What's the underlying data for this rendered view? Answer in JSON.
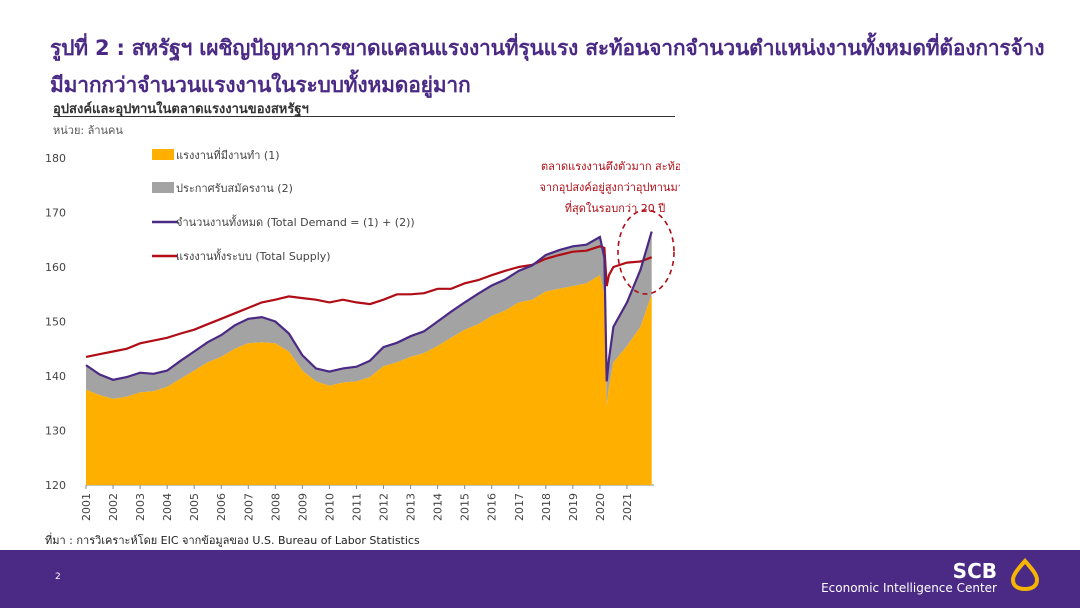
{
  "slide": {
    "title": "รูปที่ 2 : สหรัฐฯ เผชิญปัญหาการขาดแคลนแรงงานที่รุนแรง สะท้อนจากจำนวนตำแหน่งงานทั้งหมดที่ต้องการจ้างมีมากกว่าจำนวนแรงงานในระบบทั้งหมดอยู่มาก",
    "subtitle": "อุปสงค์และอุปทานในตลาดแรงงานของสหรัฐฯ",
    "unit": "หน่วย: ล้านคน",
    "source": "ที่มา : การวิเคราะห์โดย EIC จากข้อมูลของ U.S. Bureau of Labor Statistics",
    "page_number": "2",
    "brand": "SCB",
    "brand_sub": "Economic Intelligence Center"
  },
  "colors": {
    "employed": "#ffaf00",
    "unemployed": "#a3a3a3",
    "demand": "#4b2a85",
    "supply": "#b00d16",
    "annotation": "#b00d16",
    "brand": "#4b2a85",
    "logo": "#f5b400"
  },
  "chart_data": {
    "type": "area",
    "ylim": [
      120,
      180
    ],
    "yticks": [
      120,
      130,
      140,
      150,
      160,
      170,
      180
    ],
    "xticks": [
      "2001",
      "2002",
      "2003",
      "2004",
      "2005",
      "2006",
      "2007",
      "2008",
      "2009",
      "2010",
      "2011",
      "2012",
      "2013",
      "2014",
      "2015",
      "2016",
      "2017",
      "2018",
      "2019",
      "2020",
      "2021"
    ],
    "annotation": [
      "ตลาดแรงงานตึงตัวมาก สะท้อน",
      "จากอุปสงค์อยู่สูงกว่าอุปทานมาก",
      "ที่สุดในรอบกว่า 20 ปี"
    ],
    "x": [
      "2001-01",
      "2001-07",
      "2002-01",
      "2002-07",
      "2003-01",
      "2003-07",
      "2004-01",
      "2004-07",
      "2005-01",
      "2005-07",
      "2006-01",
      "2006-07",
      "2007-01",
      "2007-07",
      "2008-01",
      "2008-07",
      "2009-01",
      "2009-07",
      "2010-01",
      "2010-07",
      "2011-01",
      "2011-07",
      "2012-01",
      "2012-07",
      "2013-01",
      "2013-07",
      "2014-01",
      "2014-07",
      "2015-01",
      "2015-07",
      "2016-01",
      "2016-07",
      "2017-01",
      "2017-07",
      "2018-01",
      "2018-07",
      "2019-01",
      "2019-07",
      "2020-01",
      "2020-03",
      "2020-04",
      "2020-05",
      "2020-07",
      "2021-01",
      "2021-07",
      "2021-12"
    ],
    "series": [
      {
        "name": "แรงงานที่มีงานทำ (1)",
        "kind": "area",
        "values": [
          137.5,
          136.5,
          135.8,
          136.2,
          137.0,
          137.2,
          138.0,
          139.5,
          141.0,
          142.5,
          143.5,
          145.0,
          146.0,
          146.2,
          146.0,
          144.5,
          141.0,
          139.0,
          138.2,
          138.8,
          139.0,
          139.8,
          141.8,
          142.5,
          143.5,
          144.2,
          145.5,
          147.0,
          148.5,
          149.5,
          151.0,
          152.0,
          153.5,
          154.0,
          155.5,
          156.0,
          156.5,
          157.0,
          158.5,
          155.0,
          134.5,
          138.0,
          142.5,
          145.5,
          149.0,
          155.0
        ]
      },
      {
        "name": "ประกาศรับสมัครงาน (2)",
        "kind": "area",
        "values": [
          4.5,
          3.8,
          3.5,
          3.6,
          3.6,
          3.2,
          3.0,
          3.3,
          3.5,
          3.7,
          4.0,
          4.3,
          4.5,
          4.6,
          4.0,
          3.3,
          2.8,
          2.4,
          2.6,
          2.6,
          2.7,
          3.0,
          3.5,
          3.6,
          3.8,
          4.0,
          4.5,
          4.8,
          5.0,
          5.6,
          5.6,
          5.7,
          5.8,
          6.3,
          6.7,
          7.1,
          7.3,
          7.1,
          7.0,
          6.7,
          4.5,
          5.0,
          6.5,
          8.0,
          10.5,
          11.5
        ]
      },
      {
        "name": "จำนวนงานทั้งหมด (Total Demand = (1) + (2))",
        "kind": "line",
        "values": [
          142.0,
          140.3,
          139.3,
          139.8,
          140.6,
          140.4,
          141.0,
          142.8,
          144.5,
          146.2,
          147.5,
          149.3,
          150.5,
          150.8,
          150.0,
          147.8,
          143.8,
          141.4,
          140.8,
          141.4,
          141.7,
          142.8,
          145.3,
          146.1,
          147.3,
          148.2,
          150.0,
          151.8,
          153.5,
          155.1,
          156.6,
          157.7,
          159.3,
          160.3,
          162.2,
          163.1,
          163.8,
          164.1,
          165.5,
          161.7,
          139.0,
          143.0,
          149.0,
          153.5,
          159.5,
          166.5
        ]
      },
      {
        "name": "แรงงานทั้งระบบ (Total Supply)",
        "kind": "line",
        "values": [
          143.5,
          144.0,
          144.5,
          145.0,
          146.0,
          146.5,
          147.0,
          147.8,
          148.5,
          149.5,
          150.5,
          151.5,
          152.5,
          153.5,
          154.0,
          154.6,
          154.3,
          154.0,
          153.5,
          154.0,
          153.5,
          153.2,
          154.0,
          155.0,
          155.0,
          155.2,
          156.0,
          156.0,
          157.0,
          157.6,
          158.5,
          159.3,
          160.0,
          160.4,
          161.5,
          162.2,
          162.8,
          163.0,
          163.8,
          163.5,
          156.5,
          158.5,
          160.0,
          160.8,
          161.0,
          161.8
        ]
      }
    ]
  }
}
